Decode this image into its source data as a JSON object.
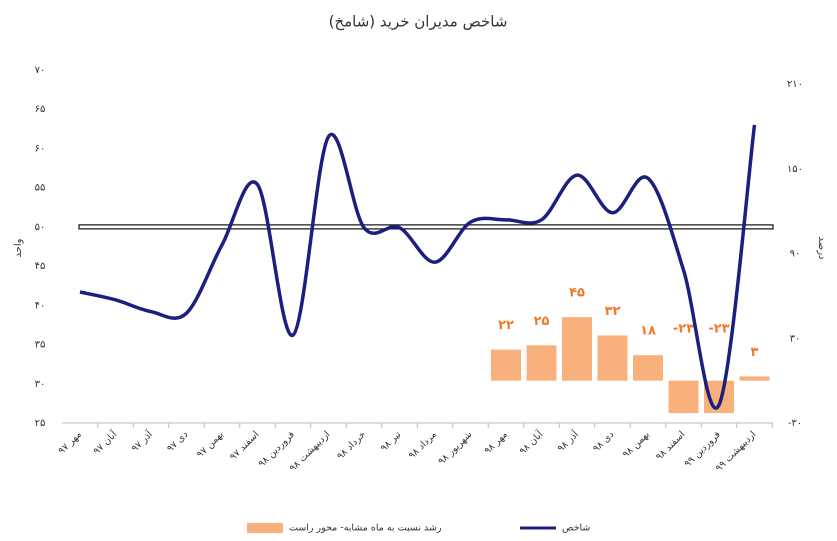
{
  "chart_data": {
    "type": "line-bar",
    "title": "شاخص مدیران خرید (شامخ)",
    "ylabel": "واحد",
    "y2label": "درصد",
    "categories": [
      "مهر ۹۷",
      "آبان ۹۷",
      "آذر ۹۷",
      "دی ۹۷",
      "بهمن ۹۷",
      "اسفند ۹۷",
      "فروردین ۹۸",
      "اردیبهشت ۹۸",
      "خرداد ۹۸",
      "تیر ۹۸",
      "مرداد ۹۸",
      "شهریور ۹۸",
      "مهر ۹۸",
      "آبان ۹۸",
      "آذر ۹۸",
      "دی ۹۸",
      "بهمن ۹۸",
      "اسفند ۹۸",
      "فروردین ۹۹",
      "اردیبهشت ۹۹"
    ],
    "series": [
      {
        "name": "شاخص",
        "type": "line",
        "color": "#1b1f7e",
        "values": [
          41.7,
          40.7,
          39.2,
          39,
          47.7,
          55.4,
          36.2,
          61.5,
          49.9,
          49.9,
          45.5,
          50.6,
          50.9,
          50.9,
          56.6,
          51.8,
          56.2,
          44.5,
          27.3,
          63
        ]
      },
      {
        "name": "رشد نسبت به ماه مشابه- محور راست",
        "type": "bar",
        "axis": "y2",
        "color": "#f8b07c",
        "values": [
          null,
          null,
          null,
          null,
          null,
          null,
          null,
          null,
          null,
          null,
          null,
          null,
          22,
          25,
          45,
          32,
          18,
          -23,
          -23,
          3
        ],
        "value_labels": [
          null,
          null,
          null,
          null,
          null,
          null,
          null,
          null,
          null,
          null,
          null,
          null,
          "۲۲",
          "۲۵",
          "۴۵",
          "۳۲",
          "۱۸",
          "-۲۳",
          "-۲۳",
          "۳"
        ]
      }
    ],
    "hline": 50,
    "ylim": [
      25,
      70
    ],
    "yticks": [
      {
        "value": 25,
        "label": "۲۵"
      },
      {
        "value": 30,
        "label": "۳۰"
      },
      {
        "value": 35,
        "label": "۳۵"
      },
      {
        "value": 40,
        "label": "۴۰"
      },
      {
        "value": 45,
        "label": "۴۵"
      },
      {
        "value": 50,
        "label": "۵۰"
      },
      {
        "value": 55,
        "label": "۵۵"
      },
      {
        "value": 60,
        "label": "۶۰"
      },
      {
        "value": 65,
        "label": "۶۵"
      },
      {
        "value": 70,
        "label": "۷۰"
      }
    ],
    "y2lim": [
      -30,
      220
    ],
    "y2ticks": [
      {
        "value": -30,
        "label": "-۳۰"
      },
      {
        "value": 30,
        "label": "۳۰"
      },
      {
        "value": 90,
        "label": "۹۰"
      },
      {
        "value": 150,
        "label": "۱۵۰"
      },
      {
        "value": 210,
        "label": "۲۱۰"
      }
    ]
  }
}
